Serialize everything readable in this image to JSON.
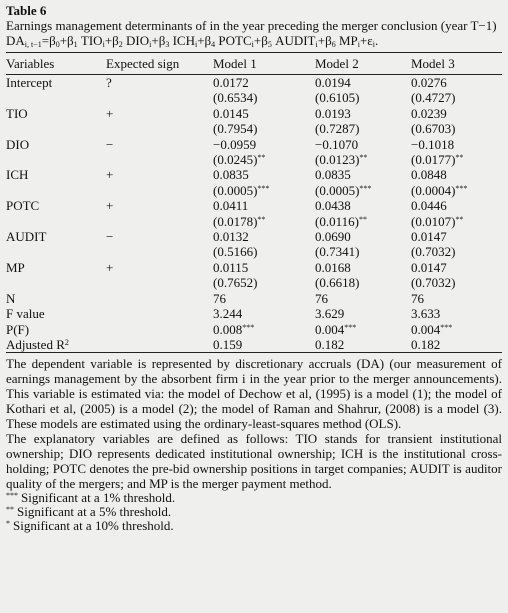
{
  "title": "Table 6",
  "caption": {
    "text": "Earnings management determinants of in the year preceding the merger conclusion (year T−1) ",
    "formula": [
      {
        "text": "DA",
        "sub": "i, t−1"
      },
      {
        "text": "=β",
        "sub": "0"
      },
      {
        "text": "+β",
        "sub": "1"
      },
      {
        "text": " TIO",
        "sub": "i"
      },
      {
        "text": "+β",
        "sub": "2"
      },
      {
        "text": " DIO",
        "sub": "i"
      },
      {
        "text": "+β",
        "sub": "3"
      },
      {
        "text": " ICH",
        "sub": "i"
      },
      {
        "text": "+β",
        "sub": "4"
      },
      {
        "text": " POTC",
        "sub": "i"
      },
      {
        "text": "+β",
        "sub": "5"
      },
      {
        "text": " AUDIT",
        "sub": "i"
      },
      {
        "text": "+β",
        "sub": "6"
      },
      {
        "text": " MP",
        "sub": "i"
      },
      {
        "text": "+ε",
        "sub": "i"
      },
      {
        "text": "."
      }
    ]
  },
  "table": {
    "header": [
      "Variables",
      "Expected sign",
      "Model 1",
      "Model 2",
      "Model 3"
    ],
    "rows": [
      [
        "Intercept",
        "?",
        "0.0172",
        "0.0194",
        "0.0276"
      ],
      [
        null,
        null,
        "(0.6534)",
        "(0.6105)",
        "(0.4727)"
      ],
      [
        "TIO",
        "+",
        "0.0145",
        "0.0193",
        "0.0239"
      ],
      [
        null,
        null,
        "(0.7954)",
        "(0.7287)",
        "(0.6703)"
      ],
      [
        "DIO",
        "−",
        "−0.0959",
        "−0.1070",
        "−0.1018"
      ],
      [
        null,
        null,
        {
          "text": "(0.0245)",
          "sup": "**"
        },
        {
          "text": "(0.0123)",
          "sup": "**"
        },
        {
          "text": "(0.0177)",
          "sup": "**"
        }
      ],
      [
        "ICH",
        "+",
        "0.0835",
        "0.0835",
        "0.0848"
      ],
      [
        null,
        null,
        {
          "text": "(0.0005)",
          "sup": "***"
        },
        {
          "text": "(0.0005)",
          "sup": "***"
        },
        {
          "text": "(0.0004)",
          "sup": "***"
        }
      ],
      [
        "POTC",
        "+",
        "0.0411",
        "0.0438",
        "0.0446"
      ],
      [
        null,
        null,
        {
          "text": "(0.0178)",
          "sup": "**"
        },
        {
          "text": "(0.0116)",
          "sup": "**"
        },
        {
          "text": "(0.0107)",
          "sup": "**"
        }
      ],
      [
        "AUDIT",
        "−",
        "0.0132",
        "0.0690",
        "0.0147"
      ],
      [
        null,
        null,
        "(0.5166)",
        "(0.7341)",
        "(0.7032)"
      ],
      [
        "MP",
        "+",
        "0.0115",
        "0.0168",
        "0.0147"
      ],
      [
        null,
        null,
        "(0.7652)",
        "(0.6618)",
        "(0.7032)"
      ],
      [
        "N",
        null,
        "76",
        "76",
        "76"
      ],
      [
        "F value",
        null,
        "3.244",
        "3.629",
        "3.633"
      ],
      [
        "P(F)",
        null,
        {
          "text": "0.008",
          "sup": "***"
        },
        {
          "text": "0.004",
          "sup": "***"
        },
        {
          "text": "0.004",
          "sup": "***"
        }
      ],
      [
        {
          "text": "Adjusted R",
          "sup": "2"
        },
        null,
        "0.159",
        "0.182",
        "0.182"
      ]
    ]
  },
  "notes": {
    "paragraphs": [
      "The dependent variable is represented by discretionary accruals (DA) (our measurement of earnings management by the absorbent firm i in the year prior to the merger announcements). This variable is estimated via: the model of Dechow et al, (1995) is a model (1); the model of Kothari et al, (2005) is a model (2); the model of Raman and Shahrur, (2008) is a model (3). These models are estimated using the ordinary-least-squares method (OLS).",
      "The explanatory variables are defined as follows: TIO stands for transient institutional ownership; DIO represents dedicated institutional ownership; ICH is the institutional cross-holding; POTC denotes the pre-bid ownership positions in target companies; AUDIT is auditor quality of the mergers; and MP is the merger payment method."
    ],
    "footnotes": [
      {
        "sup": "***",
        "text": "Significant at a 1% threshold."
      },
      {
        "sup": "**",
        "text": "Significant at a 5% threshold."
      },
      {
        "sup": "*",
        "text": "Significant at a 10% threshold."
      }
    ]
  }
}
